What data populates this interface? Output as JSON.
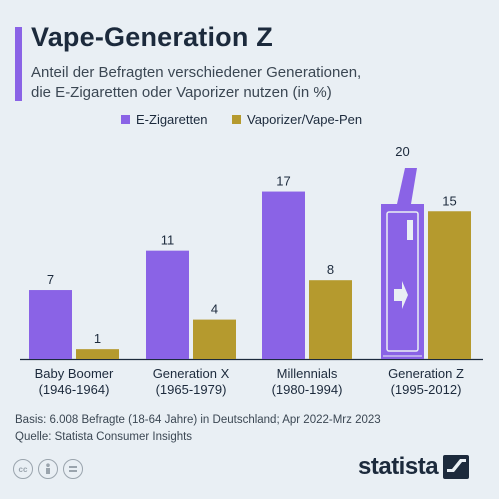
{
  "title": "Vape-Generation Z",
  "subtitle_lines": [
    "Anteil der Befragten verschiedener Generationen,",
    "die E-Zigaretten oder Vaporizer nutzen (in %)"
  ],
  "legend": [
    {
      "label": "E-Zigaretten",
      "color": "#8a63e6"
    },
    {
      "label": "Vaporizer/Vape-Pen",
      "color": "#b59a2e"
    }
  ],
  "source": {
    "basis": "Basis: 6.008 Befragte (18-64 Jahre) in Deutschland; Apr 2022-Mrz 2023",
    "quelle": "Quelle: Statista Consumer Insights"
  },
  "brand": "statista",
  "chart_data": {
    "type": "bar",
    "categories": [
      [
        "Baby Boomer",
        "(1946-1964)"
      ],
      [
        "Generation X",
        "(1965-1979)"
      ],
      [
        "Millennials",
        "(1980-1994)"
      ],
      [
        "Generation Z",
        "(1995-2012)"
      ]
    ],
    "series": [
      {
        "name": "E-Zigaretten",
        "color": "#8a63e6",
        "values": [
          7,
          11,
          17,
          20
        ]
      },
      {
        "name": "Vaporizer/Vape-Pen",
        "color": "#b59a2e",
        "values": [
          1,
          4,
          8,
          15
        ]
      }
    ],
    "ylim": [
      0,
      20
    ],
    "highlight": "Generation Z bar drawn as a vape device",
    "grid": false
  }
}
